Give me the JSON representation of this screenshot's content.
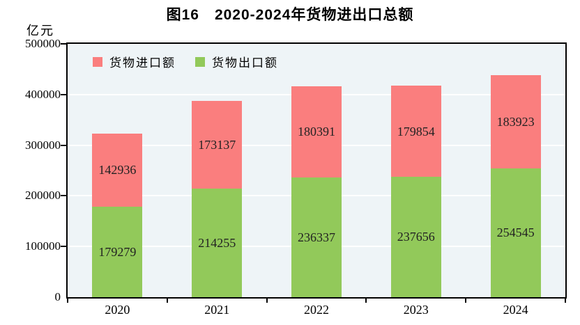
{
  "title": "图16　2020-2024年货物进出口总额",
  "y_axis_unit": "亿元",
  "legend": {
    "imports_label": "货物进口额",
    "exports_label": "货物出口额"
  },
  "colors": {
    "imports": "#FA7E7E",
    "exports": "#92C95A",
    "plot_bg": "#EEF4F7",
    "gridline": "#FFFFFF",
    "axis": "#000000",
    "label_text": "#222222"
  },
  "chart_data": {
    "type": "bar",
    "stacked": true,
    "title": "图16　2020-2024年货物进出口总额",
    "ylabel": "亿元",
    "categories": [
      "2020",
      "2021",
      "2022",
      "2023",
      "2024"
    ],
    "series": [
      {
        "name": "货物出口额",
        "color_key": "exports",
        "values": [
          179279,
          214255,
          236337,
          237656,
          254545
        ]
      },
      {
        "name": "货物进口额",
        "color_key": "imports",
        "values": [
          142936,
          173137,
          180391,
          179854,
          183923
        ]
      }
    ],
    "ylim": [
      0,
      500000
    ],
    "y_ticks": [
      0,
      100000,
      200000,
      300000,
      400000,
      500000
    ],
    "grid": true,
    "legend_position": "top-left-inside"
  }
}
